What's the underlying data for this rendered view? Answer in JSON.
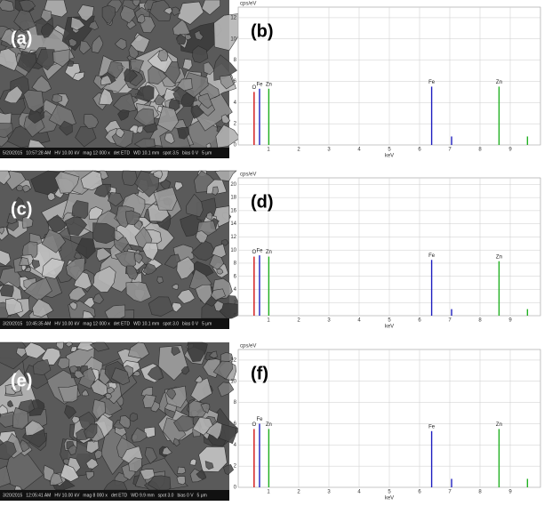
{
  "sem_images": [
    {
      "label": "(a)",
      "info": [
        "5/20/2015",
        "10:57:28 AM",
        "HV 10.00 kV",
        "mag 12 000 x",
        "det ETD",
        "WD 10.1 mm",
        "spot 3.5",
        "bias 0 V",
        "5 μm"
      ]
    },
    {
      "label": "(c)",
      "info": [
        "3/20/2015",
        "10:45:35 AM",
        "HV 10.00 kV",
        "mag 12 000 x",
        "det ETD",
        "WD 10.1 mm",
        "spot 3.0",
        "bias 0 V",
        "5 μm"
      ]
    },
    {
      "label": "(e)",
      "info": [
        "3/20/2015",
        "12:05:41 AM",
        "HV 10.00 kV",
        "mag 8 000 x",
        "det ETD",
        "WD 9.9 mm",
        "spot 3.0",
        "bias 0 V",
        "5 μm"
      ]
    }
  ],
  "chart_data": [
    {
      "type": "spectrum",
      "panel_label": "(b)",
      "y_label": "cps/eV",
      "x_label": "keV",
      "xlim": [
        0,
        10
      ],
      "xticks": [
        1,
        2,
        3,
        4,
        5,
        6,
        7,
        8,
        9
      ],
      "ylim": [
        0,
        13
      ],
      "yticks": [
        0,
        2,
        4,
        6,
        8,
        10,
        12
      ],
      "grid": true,
      "series": [
        {
          "name": "O",
          "color": "#d01010",
          "x": [
            0.525
          ],
          "values": [
            5
          ]
        },
        {
          "name": "Fe",
          "color": "#2020c0",
          "x": [
            0.705,
            6.4,
            7.06
          ],
          "values": [
            5.3,
            5.5,
            0.8
          ]
        },
        {
          "name": "Zn",
          "color": "#20b020",
          "x": [
            1.012,
            8.63,
            9.57
          ],
          "values": [
            5.3,
            5.5,
            0.8
          ]
        }
      ]
    },
    {
      "type": "spectrum",
      "panel_label": "(d)",
      "y_label": "cps/eV",
      "x_label": "keV",
      "xlim": [
        0,
        10
      ],
      "xticks": [
        1,
        2,
        3,
        4,
        5,
        6,
        7,
        8,
        9
      ],
      "ylim": [
        0,
        21
      ],
      "yticks": [
        0,
        2,
        4,
        6,
        8,
        10,
        12,
        14,
        16,
        18,
        20
      ],
      "grid": true,
      "series": [
        {
          "name": "O",
          "color": "#d01010",
          "x": [
            0.525
          ],
          "values": [
            9
          ]
        },
        {
          "name": "Fe",
          "color": "#2020c0",
          "x": [
            0.705,
            6.4,
            7.06
          ],
          "values": [
            9.2,
            8.5,
            1
          ]
        },
        {
          "name": "Zn",
          "color": "#20b020",
          "x": [
            1.012,
            8.63,
            9.57
          ],
          "values": [
            9,
            8.3,
            1
          ]
        }
      ]
    },
    {
      "type": "spectrum",
      "panel_label": "(f)",
      "y_label": "cps/eV",
      "x_label": "keV",
      "xlim": [
        0,
        10
      ],
      "xticks": [
        1,
        2,
        3,
        4,
        5,
        6,
        7,
        8,
        9
      ],
      "ylim": [
        0,
        13
      ],
      "yticks": [
        0,
        2,
        4,
        6,
        8,
        10,
        12
      ],
      "grid": true,
      "series": [
        {
          "name": "O",
          "color": "#d01010",
          "x": [
            0.525
          ],
          "values": [
            5.5
          ]
        },
        {
          "name": "Fe",
          "color": "#2020c0",
          "x": [
            0.705,
            6.4,
            7.06
          ],
          "values": [
            6,
            5.3,
            0.8
          ]
        },
        {
          "name": "Zn",
          "color": "#20b020",
          "x": [
            1.012,
            8.63,
            9.57
          ],
          "values": [
            5.5,
            5.5,
            0.8
          ]
        }
      ]
    }
  ]
}
